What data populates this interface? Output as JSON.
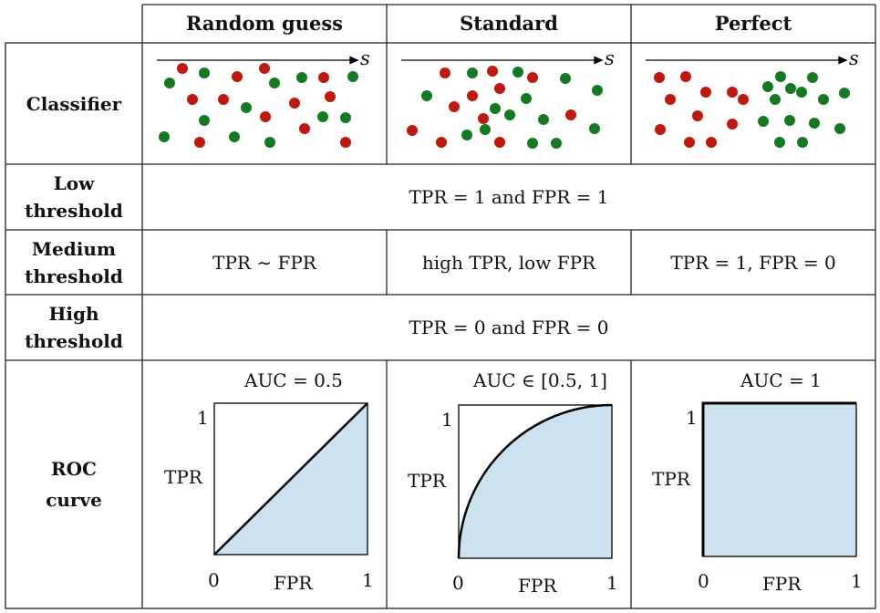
{
  "columns": [
    "Random guess",
    "Standard",
    "Perfect"
  ],
  "rows": {
    "classifier": "Classifier",
    "low": [
      "Low",
      "threshold"
    ],
    "medium": [
      "Medium",
      "threshold"
    ],
    "high": [
      "High",
      "threshold"
    ],
    "roc": [
      "ROC",
      "curve"
    ]
  },
  "axis_symbol": "s",
  "low_text": "TPR = 1 and FPR = 1",
  "medium_texts": [
    "TPR ∼ FPR",
    "high TPR, low FPR",
    "TPR = 1, FPR = 0"
  ],
  "high_text": "TPR = 0 and FPR = 0",
  "roc": [
    {
      "auc": "AUC = 0.5",
      "tpr_label": "TPR",
      "fpr_label": "FPR",
      "zero": "0",
      "one_x": "1",
      "one_y": "1"
    },
    {
      "auc": "AUC ∈ [0.5, 1]",
      "tpr_label": "TPR",
      "fpr_label": "FPR",
      "zero": "0",
      "one_x": "1",
      "one_y": "1"
    },
    {
      "auc": "AUC = 1",
      "tpr_label": "TPR",
      "fpr_label": "FPR",
      "zero": "0",
      "one_x": "1",
      "one_y": "1"
    }
  ],
  "colors": {
    "red": "#c0180e",
    "green": "#137a22",
    "fill": "#cde2f0",
    "line": "#000000"
  }
}
